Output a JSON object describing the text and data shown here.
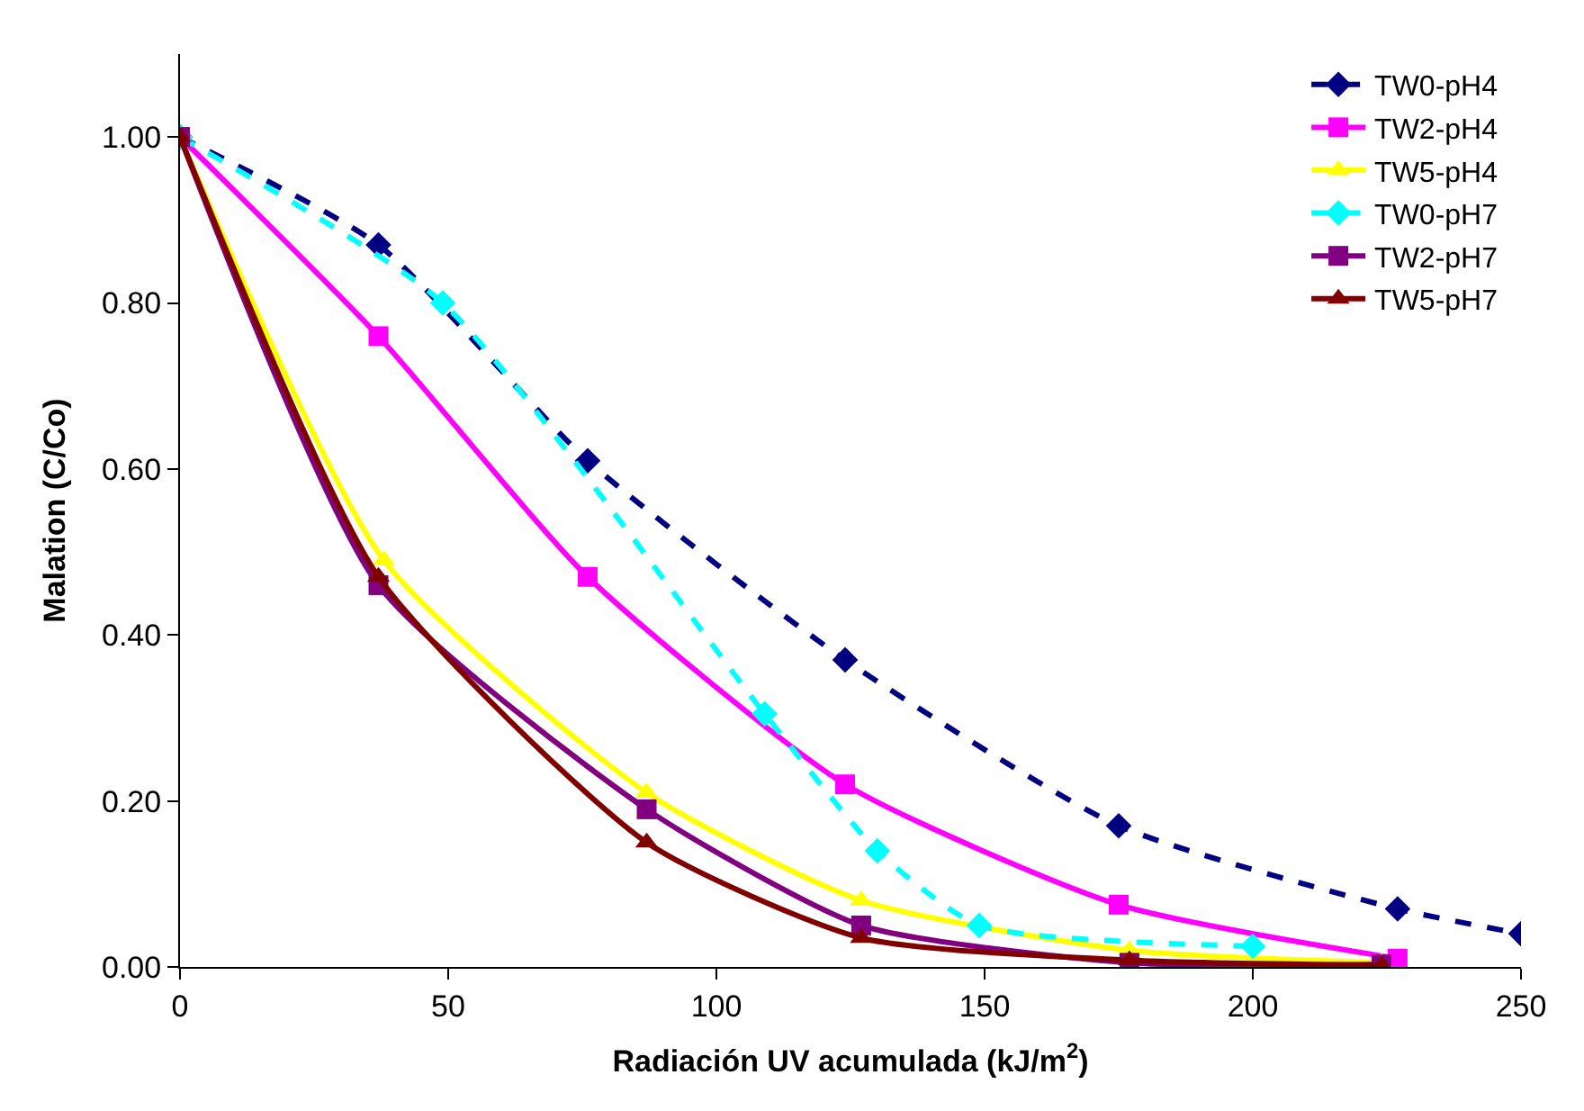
{
  "chart_data": {
    "type": "line",
    "xlabel": "Radiación UV acumulada (kJ/m$^{2}$)",
    "ylabel": "Malation (C/Co)",
    "xlim": [
      0,
      250
    ],
    "xticks": [
      0,
      50,
      100,
      150,
      200,
      250
    ],
    "ylim": [
      0,
      1.1
    ],
    "yticks": [
      {
        "value": 0,
        "label": "0.00"
      },
      {
        "value": 0.2,
        "label": "0.20"
      },
      {
        "value": 0.4,
        "label": "0.40"
      },
      {
        "value": 0.6,
        "label": "0.60"
      },
      {
        "value": 0.8,
        "label": "0.80"
      },
      {
        "value": 1.0,
        "label": "1.00"
      }
    ],
    "legend": "top right",
    "series": [
      {
        "name": "TW0-pH4",
        "color": "#000080",
        "marker": "diamond",
        "line_style": "dashed",
        "x": [
          0,
          37,
          76,
          124,
          175,
          227,
          250
        ],
        "values": [
          1.0,
          0.87,
          0.61,
          0.37,
          0.17,
          0.07,
          0.04
        ]
      },
      {
        "name": "TW2-pH4",
        "color": "#ff00ff",
        "marker": "square",
        "line_style": "solid",
        "x": [
          0,
          37,
          76,
          124,
          175,
          227
        ],
        "values": [
          1.0,
          0.76,
          0.47,
          0.22,
          0.075,
          0.01
        ]
      },
      {
        "name": "TW5-pH4",
        "color": "#ffff00",
        "marker": "triangle",
        "line_style": "solid",
        "x": [
          0,
          38,
          87,
          127,
          177,
          224
        ],
        "values": [
          1.0,
          0.49,
          0.21,
          0.08,
          0.02,
          0.005
        ]
      },
      {
        "name": "TW0-pH7",
        "color": "#00ffff",
        "marker": "diamond",
        "line_style": "dashed",
        "x": [
          0,
          49,
          109,
          130,
          149,
          200
        ],
        "values": [
          1.0,
          0.8,
          0.305,
          0.14,
          0.05,
          0.025
        ]
      },
      {
        "name": "TW2-pH7",
        "color": "#800080",
        "marker": "square",
        "line_style": "solid",
        "x": [
          0,
          37,
          87,
          127,
          177,
          224
        ],
        "values": [
          1.0,
          0.46,
          0.19,
          0.05,
          0.005,
          0.003
        ]
      },
      {
        "name": "TW5-pH7",
        "color": "#800000",
        "marker": "triangle",
        "line_style": "solid",
        "x": [
          0,
          37,
          87,
          127,
          177,
          224
        ],
        "values": [
          1.0,
          0.47,
          0.15,
          0.035,
          0.008,
          0.002
        ]
      }
    ]
  }
}
